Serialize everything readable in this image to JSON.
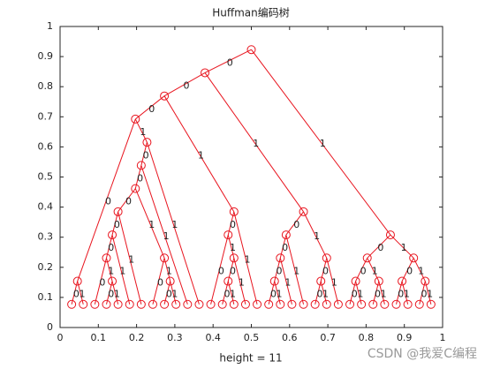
{
  "chart_data": {
    "type": "tree",
    "title": "Huffman编码树",
    "xlabel": "height = 11",
    "watermark": "CSDN @我爱C编程",
    "color": "#e8141e",
    "parents": [
      null,
      0,
      0,
      1,
      1,
      3,
      3,
      5,
      5,
      7,
      7,
      8,
      8,
      11,
      11,
      13,
      13,
      15,
      15,
      17,
      17,
      19,
      19,
      22,
      22,
      16,
      16,
      26,
      26,
      6,
      6,
      29,
      29,
      32,
      32,
      33,
      33,
      4,
      4,
      37,
      37,
      39,
      39,
      41,
      41,
      38,
      38,
      45,
      45,
      2,
      2,
      49,
      49,
      50,
      50,
      51,
      51,
      52,
      52,
      53,
      53,
      54,
      54
    ],
    "edge_labels": [
      null,
      "0",
      "1",
      "0",
      "1",
      "0",
      "1",
      "0",
      "1",
      "0",
      "1",
      "0",
      "1",
      "0",
      "1",
      "0",
      "1",
      "0",
      "1",
      "0",
      "1",
      "0",
      "1",
      "0",
      "1",
      "0",
      "1",
      "0",
      "1",
      "0",
      "1",
      "0",
      "1",
      "0",
      "1",
      "0",
      "1",
      "0",
      "1",
      "0",
      "1",
      "0",
      "1",
      "0",
      "1",
      "0",
      "1",
      "0",
      "1",
      "0",
      "1",
      "0",
      "1",
      "0",
      "1",
      "0",
      "1",
      "0",
      "1",
      "0",
      "1",
      "0",
      "1"
    ],
    "xlim": [
      0,
      1
    ],
    "ylim": [
      0,
      1
    ],
    "xticks": [
      0,
      0.1,
      0.2,
      0.3,
      0.4,
      0.5,
      0.6,
      0.7,
      0.8,
      0.9,
      1
    ],
    "yticks": [
      0,
      0.1,
      0.2,
      0.3,
      0.4,
      0.5,
      0.6,
      0.7,
      0.8,
      0.9,
      1
    ]
  }
}
